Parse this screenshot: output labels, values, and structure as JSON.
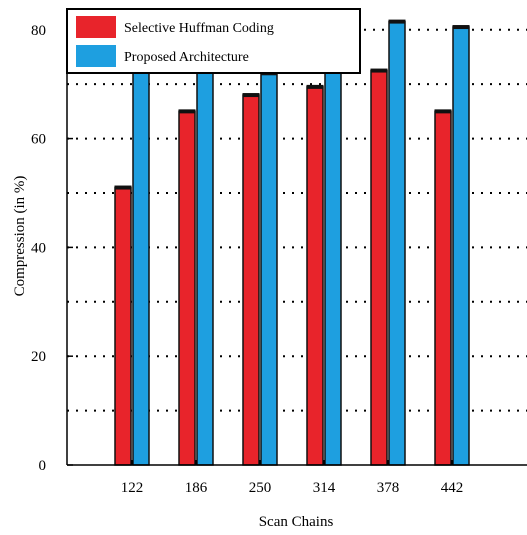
{
  "chart_data": {
    "type": "bar",
    "xlabel": "Scan Chains",
    "ylabel": "Compression (in %)",
    "categories": [
      "122",
      "186",
      "250",
      "314",
      "378",
      "442"
    ],
    "series": [
      {
        "name": "Selective Huffman Coding",
        "color": "#e8242b",
        "values": [
          51,
          65,
          68,
          69.5,
          72.5,
          65
        ]
      },
      {
        "name": "Proposed Architecture",
        "color": "#1e9fe0",
        "values": [
          76,
          75.5,
          72,
          72.5,
          81.5,
          80.5
        ]
      }
    ],
    "ylim": [
      0,
      84
    ],
    "yticks": [
      0,
      20,
      40,
      60,
      80
    ],
    "grid": "dotted-horizontal",
    "legend_position": "top-left"
  }
}
